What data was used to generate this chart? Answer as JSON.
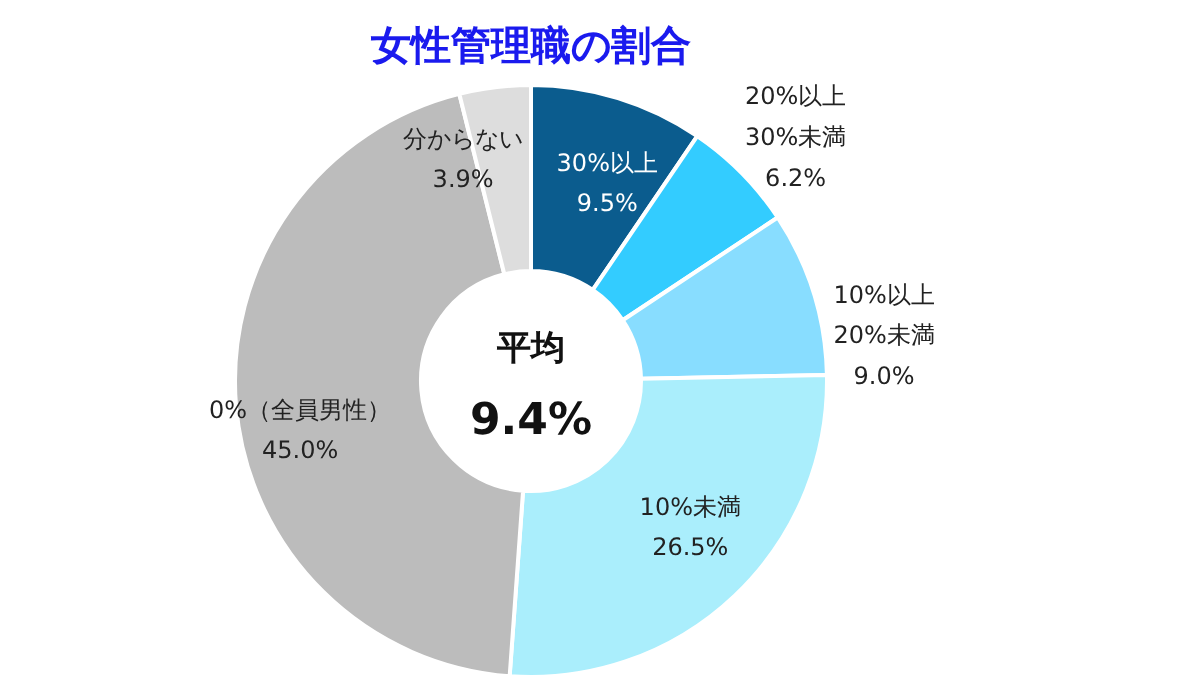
{
  "chart_data": {
    "type": "donut",
    "title": "女性管理職の割合",
    "categories": [
      "30%以上",
      "20%以上30%未満",
      "10%以上20%未満",
      "10%未満",
      "0%（全員男性）",
      "分からない"
    ],
    "values": [
      9.5,
      6.2,
      9.0,
      26.5,
      45.0,
      3.9
    ],
    "colors": [
      "#0b5c8e",
      "#33ccff",
      "#88ddff",
      "#aaeefc",
      "#bcbcbc",
      "#dddddd"
    ],
    "value_labels": [
      "9.5%",
      "6.2%",
      "9.0%",
      "26.5%",
      "45.0%",
      "3.9%"
    ],
    "annotations": [
      "平均",
      "9.4%"
    ]
  }
}
